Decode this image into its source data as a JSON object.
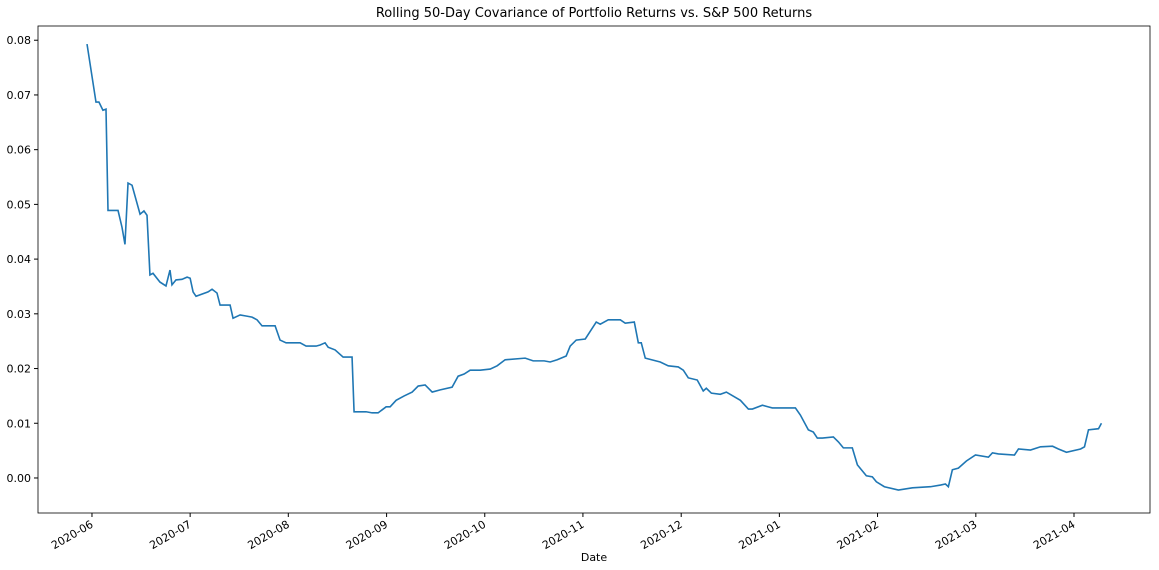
{
  "chart_data": {
    "type": "line",
    "title": "Rolling 50-Day Covariance of Portfolio Returns vs. S&P 500 Returns",
    "xlabel": "Date",
    "xlim": [
      2020.3709,
      2021.3145
    ],
    "ylim": [
      -0.0064,
      0.0826
    ],
    "xticks": [
      {
        "value": 2020.4167,
        "label": "2020-06"
      },
      {
        "value": 2020.5,
        "label": "2020-07"
      },
      {
        "value": 2020.5833,
        "label": "2020-08"
      },
      {
        "value": 2020.6667,
        "label": "2020-09"
      },
      {
        "value": 2020.75,
        "label": "2020-10"
      },
      {
        "value": 2020.8333,
        "label": "2020-11"
      },
      {
        "value": 2020.9167,
        "label": "2020-12"
      },
      {
        "value": 2021.0,
        "label": "2021-01"
      },
      {
        "value": 2021.0833,
        "label": "2021-02"
      },
      {
        "value": 2021.1667,
        "label": "2021-03"
      },
      {
        "value": 2021.25,
        "label": "2021-04"
      }
    ],
    "yticks": [
      {
        "value": 0,
        "label": "0.00"
      },
      0.01,
      0.02,
      0.03,
      0.04,
      0.05,
      0.06,
      0.07,
      0.08
    ],
    "grid": false,
    "x": [
      2020.4125,
      2020.4201,
      2020.4226,
      2020.426,
      2020.4286,
      2020.4303,
      2020.4388,
      2020.4422,
      2020.4447,
      2020.4473,
      2020.4507,
      2020.4575,
      2020.4608,
      2020.4634,
      2020.4659,
      2020.4685,
      2020.4744,
      2020.4795,
      2020.4829,
      2020.4846,
      2020.488,
      2020.4931,
      2020.4974,
      2020.5,
      2020.5025,
      2020.505,
      2020.5152,
      2020.5186,
      2020.5228,
      2020.5254,
      2020.5339,
      2020.5364,
      2020.5424,
      2020.5474,
      2020.5525,
      2020.5568,
      2020.561,
      2020.5721,
      2020.5763,
      2020.5814,
      2020.5933,
      2020.5984,
      2020.6069,
      2020.6103,
      2020.6145,
      2020.6171,
      2020.623,
      2020.6298,
      2020.6374,
      2020.6391,
      2020.6493,
      2020.6544,
      2020.6595,
      2020.6663,
      2020.6697,
      2020.6748,
      2020.6816,
      2020.6884,
      2020.6935,
      2020.6994,
      2020.7054,
      2020.7122,
      2020.7223,
      2020.7274,
      2020.7325,
      2020.7376,
      2020.7461,
      2020.7546,
      2020.7605,
      2020.7673,
      2020.7843,
      2020.7911,
      2020.8004,
      2020.8055,
      2020.8115,
      2020.8191,
      2020.8225,
      2020.8276,
      2020.8353,
      2020.8395,
      2020.8446,
      2020.848,
      2020.8548,
      2020.865,
      2020.8692,
      2020.8769,
      2020.8803,
      2020.8828,
      2020.8862,
      2020.8989,
      2020.9057,
      2020.9142,
      2020.9185,
      2020.9227,
      2020.9303,
      2020.9354,
      2020.938,
      2020.9423,
      2020.9499,
      2020.955,
      2020.9669,
      2020.9737,
      2020.9771,
      2020.9856,
      2020.9906,
      2020.994,
      2021.0136,
      2021.0178,
      2021.0246,
      2021.0288,
      2021.0322,
      2021.0365,
      2021.0458,
      2021.0501,
      2021.0543,
      2021.0619,
      2021.0662,
      2021.0738,
      2021.0789,
      2021.0823,
      2021.0891,
      2021.101,
      2021.1129,
      2021.1282,
      2021.1367,
      2021.1409,
      2021.1434,
      2021.1468,
      2021.1519,
      2021.1587,
      2021.1664,
      2021.1774,
      2021.1808,
      2021.1859,
      2021.1995,
      2021.2029,
      2021.2131,
      2021.2216,
      2021.2318,
      2021.2368,
      2021.2436,
      2021.2556,
      2021.2589,
      2021.2623,
      2021.2708,
      2021.2733
    ],
    "series": [
      {
        "color": "#1f77b4",
        "values": [
          0.0793,
          0.0687,
          0.0687,
          0.0672,
          0.0674,
          0.0489,
          0.0489,
          0.0458,
          0.0427,
          0.0539,
          0.0535,
          0.0482,
          0.0488,
          0.048,
          0.0371,
          0.0374,
          0.0358,
          0.0351,
          0.038,
          0.0353,
          0.0362,
          0.0363,
          0.0367,
          0.0365,
          0.034,
          0.0332,
          0.034,
          0.0345,
          0.0338,
          0.0316,
          0.0316,
          0.0292,
          0.0298,
          0.0296,
          0.0294,
          0.0289,
          0.0278,
          0.0278,
          0.0252,
          0.0247,
          0.0247,
          0.0241,
          0.0241,
          0.0243,
          0.0247,
          0.0239,
          0.0234,
          0.0221,
          0.0221,
          0.0121,
          0.0121,
          0.0119,
          0.0119,
          0.013,
          0.013,
          0.0142,
          0.015,
          0.0157,
          0.0168,
          0.017,
          0.0157,
          0.0161,
          0.0166,
          0.0186,
          0.019,
          0.0197,
          0.0197,
          0.0199,
          0.0205,
          0.0216,
          0.0219,
          0.0214,
          0.0214,
          0.0212,
          0.0216,
          0.0223,
          0.0241,
          0.0252,
          0.0254,
          0.0268,
          0.0285,
          0.0281,
          0.0289,
          0.0289,
          0.0283,
          0.0285,
          0.0247,
          0.0247,
          0.0219,
          0.0212,
          0.0205,
          0.0203,
          0.0197,
          0.0183,
          0.0179,
          0.0159,
          0.0164,
          0.0155,
          0.0153,
          0.0157,
          0.0142,
          0.0126,
          0.0126,
          0.0133,
          0.013,
          0.0128,
          0.0128,
          0.0115,
          0.0088,
          0.0084,
          0.0073,
          0.0073,
          0.0075,
          0.0066,
          0.0055,
          0.0055,
          0.0024,
          0.0004,
          0.0002,
          -0.0007,
          -0.0016,
          -0.0022,
          -0.0018,
          -0.0016,
          -0.0013,
          -0.0011,
          -0.0016,
          0.0015,
          0.0018,
          0.0031,
          0.0042,
          0.0038,
          0.0046,
          0.0044,
          0.0042,
          0.0053,
          0.0051,
          0.0057,
          0.0058,
          0.0053,
          0.0047,
          0.0053,
          0.0057,
          0.0088,
          0.009,
          0.01
        ]
      }
    ]
  }
}
